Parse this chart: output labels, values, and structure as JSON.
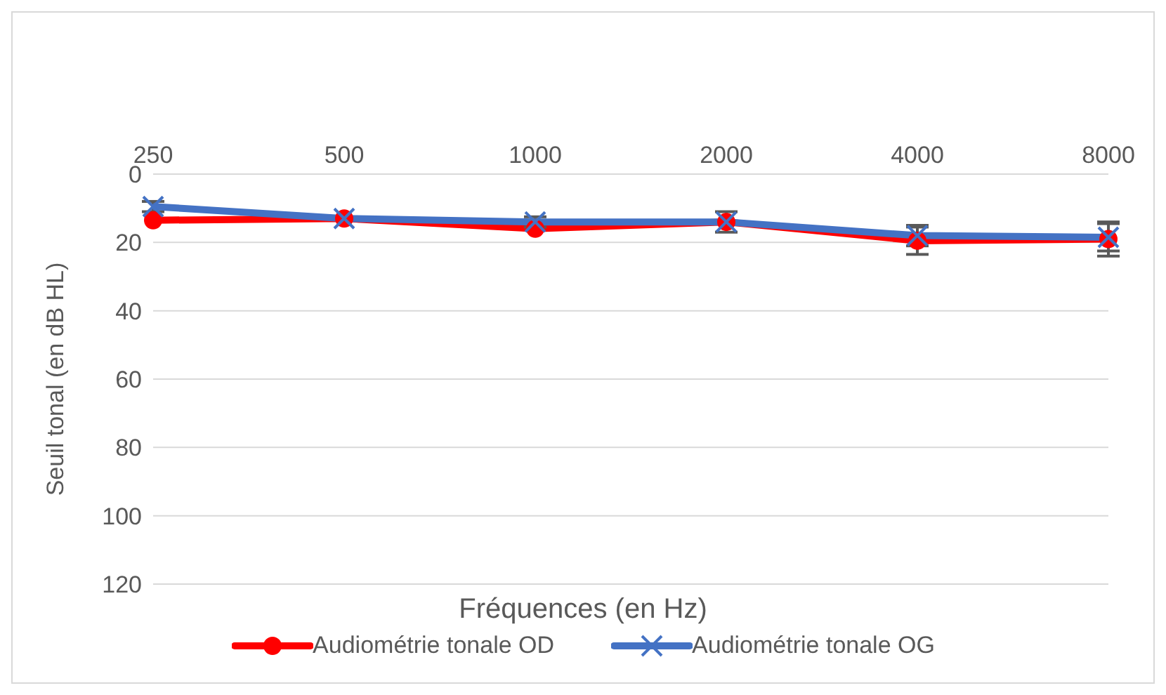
{
  "chart_data": {
    "type": "line",
    "xlabel": "Fréquences (en Hz)",
    "ylabel": "Seuil tonal (en dB HL)",
    "categories": [
      "250",
      "500",
      "1000",
      "2000",
      "4000",
      "8000"
    ],
    "series": [
      {
        "name": "Audiométrie tonale OD",
        "color": "#ff0000",
        "marker": "circle",
        "values": [
          13.5,
          13,
          16,
          14,
          19.5,
          19
        ],
        "errors": [
          null,
          null,
          null,
          null,
          4,
          5
        ]
      },
      {
        "name": "Audiométrie tonale OG",
        "color": "#4472c4",
        "marker": "cross",
        "values": [
          9.5,
          13,
          14,
          14,
          18,
          18.5
        ],
        "errors": [
          1.5,
          null,
          1.5,
          3,
          3,
          4
        ]
      }
    ],
    "ylim": [
      120,
      0
    ],
    "yticks": [
      0,
      20,
      40,
      60,
      80,
      100,
      120
    ],
    "grid": "y",
    "legend": "bottom"
  }
}
